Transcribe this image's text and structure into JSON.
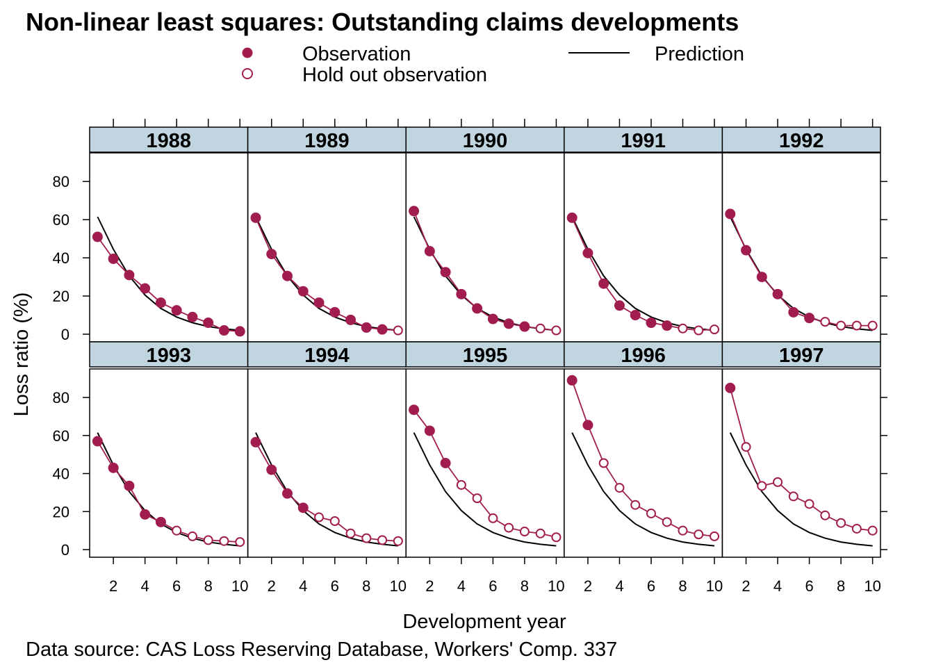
{
  "title": "Non-linear least squares: Outstanding claims developments",
  "source": "Data source: CAS Loss Reserving Database,  Workers' Comp. 337",
  "colors": {
    "observation": "#A11D4F",
    "prediction": "#000000",
    "strip": "#C0D5E0"
  },
  "chart_data": {
    "type": "line",
    "xlabel": "Development year",
    "ylabel": "Loss ratio (%)",
    "xlim": [
      0.5,
      10.5
    ],
    "ylim": [
      -4,
      95
    ],
    "x_ticks": [
      2,
      4,
      6,
      8,
      10
    ],
    "y_ticks": [
      0,
      20,
      40,
      60,
      80
    ],
    "legend": {
      "placement": "top",
      "observation": "Observation",
      "holdout": "Hold out observation",
      "prediction": "Prediction"
    },
    "x": [
      1,
      2,
      3,
      4,
      5,
      6,
      7,
      8,
      9,
      10
    ],
    "prediction": [
      61.5,
      44.5,
      30.5,
      20.5,
      13.5,
      9,
      6,
      4,
      2.8,
      2
    ],
    "panels": [
      {
        "year": "1988",
        "values": [
          51,
          39.5,
          31,
          24,
          16.5,
          12.5,
          9,
          6,
          2,
          1.5
        ],
        "holdout_from": 11
      },
      {
        "year": "1989",
        "values": [
          61,
          42,
          30.5,
          22.5,
          16.5,
          11.5,
          7.5,
          3.5,
          2.5,
          2
        ],
        "holdout_from": 10
      },
      {
        "year": "1990",
        "values": [
          64.5,
          43.5,
          32.5,
          21,
          13.5,
          8,
          5.5,
          4,
          3,
          2
        ],
        "holdout_from": 9
      },
      {
        "year": "1991",
        "values": [
          61,
          42.5,
          26.5,
          15,
          10,
          6,
          4.5,
          3,
          2,
          2.5
        ],
        "holdout_from": 8
      },
      {
        "year": "1992",
        "values": [
          63,
          44,
          30,
          21,
          11.5,
          8.5,
          6.5,
          4.5,
          4.5,
          4.5
        ],
        "holdout_from": 7
      },
      {
        "year": "1993",
        "values": [
          57,
          43,
          33.5,
          18.5,
          14.5,
          10,
          7,
          5,
          4.5,
          4
        ],
        "holdout_from": 6
      },
      {
        "year": "1994",
        "values": [
          56.5,
          42,
          29.5,
          22,
          17,
          15,
          8.5,
          6,
          5,
          4.5
        ],
        "holdout_from": 5
      },
      {
        "year": "1995",
        "values": [
          73.5,
          62.5,
          45.5,
          34,
          27,
          16.5,
          11.5,
          9.5,
          8.5,
          6.5
        ],
        "holdout_from": 4
      },
      {
        "year": "1996",
        "values": [
          89,
          65.5,
          45.5,
          32.5,
          23.5,
          19,
          14.5,
          10,
          8,
          7
        ],
        "holdout_from": 3
      },
      {
        "year": "1997",
        "values": [
          85,
          54,
          33.5,
          35.5,
          28,
          24,
          18,
          14,
          11,
          10
        ],
        "holdout_from": 2
      }
    ]
  }
}
